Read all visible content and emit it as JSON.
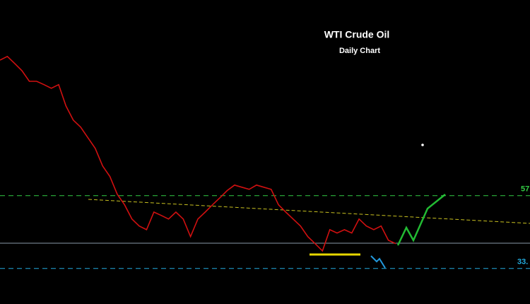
{
  "chart_data": {
    "type": "line",
    "title": "WTI Crude Oil",
    "subtitle": "Daily Chart",
    "color": "#d01010",
    "values": [
      101.7,
      102.9,
      100.6,
      98.2,
      94.7,
      94.7,
      93.6,
      92.4,
      93.6,
      86.6,
      81.9,
      79.6,
      76.1,
      72.6,
      66.8,
      63.3,
      57.5,
      54.0,
      49.3,
      47.0,
      45.8,
      51.6,
      50.5,
      49.3,
      51.6,
      49.3,
      43.5,
      49.3,
      51.6,
      54.0,
      56.3,
      58.7,
      60.5,
      59.8,
      59.1,
      60.5,
      59.8,
      59.1,
      54.0,
      51.6,
      49.3,
      47.0,
      43.5,
      41.2,
      38.8,
      45.8,
      44.7,
      45.8,
      44.7,
      49.3,
      47.0,
      45.8,
      47.0,
      42.3,
      41.2
    ],
    "ylim": [
      21.3,
      121.5
    ],
    "levels": [
      {
        "value": 57,
        "label": "57",
        "color": "#33cc44"
      },
      {
        "value": 33,
        "label": "33.",
        "color": "#22aadd"
      }
    ]
  }
}
